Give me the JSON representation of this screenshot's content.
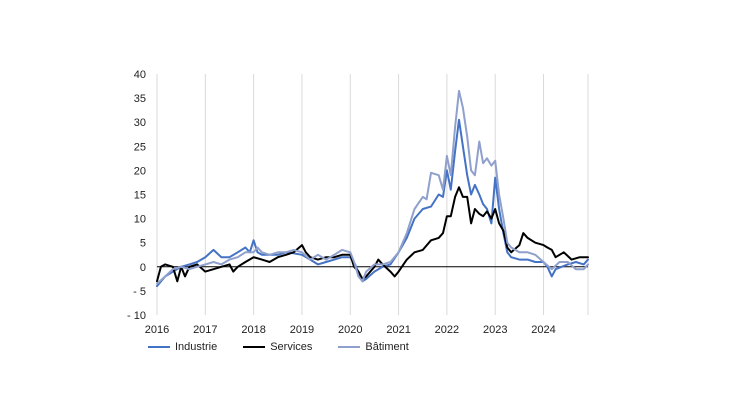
{
  "chart_data": {
    "type": "line",
    "title": "",
    "xlabel": "",
    "ylabel": "",
    "ylim": [
      -10,
      40
    ],
    "yticks": [
      -10,
      -5,
      0,
      5,
      10,
      15,
      20,
      25,
      30,
      35,
      40
    ],
    "ytick_labels": [
      "- 10",
      "- 5",
      "0",
      "5",
      "10",
      "15",
      "20",
      "25",
      "30",
      "35",
      "40"
    ],
    "xlim": [
      2016,
      2024.92
    ],
    "xticks": [
      2016,
      2017,
      2018,
      2019,
      2020,
      2021,
      2022,
      2023,
      2024
    ],
    "xtick_labels": [
      "2016",
      "2017",
      "2018",
      "2019",
      "2020",
      "2021",
      "2022",
      "2023",
      "2024"
    ],
    "grid": "vertical",
    "legend_position": "bottom-left",
    "zero_line": true,
    "series": [
      {
        "name": "Industrie",
        "color": "#4472c4",
        "points": [
          [
            2016.0,
            -4
          ],
          [
            2016.17,
            -2
          ],
          [
            2016.33,
            -1
          ],
          [
            2016.5,
            0
          ],
          [
            2016.67,
            0.5
          ],
          [
            2016.83,
            1
          ],
          [
            2017.0,
            2
          ],
          [
            2017.17,
            3.5
          ],
          [
            2017.33,
            2
          ],
          [
            2017.5,
            2
          ],
          [
            2017.67,
            3
          ],
          [
            2017.83,
            4
          ],
          [
            2017.92,
            3
          ],
          [
            2018.0,
            5.5
          ],
          [
            2018.08,
            3
          ],
          [
            2018.17,
            2.5
          ],
          [
            2018.33,
            2.5
          ],
          [
            2018.5,
            2.5
          ],
          [
            2018.67,
            3
          ],
          [
            2018.83,
            2.8
          ],
          [
            2019.0,
            2.5
          ],
          [
            2019.17,
            1.5
          ],
          [
            2019.33,
            0.5
          ],
          [
            2019.5,
            1
          ],
          [
            2019.67,
            1.5
          ],
          [
            2019.83,
            2
          ],
          [
            2020.0,
            2
          ],
          [
            2020.1,
            0.5
          ],
          [
            2020.25,
            -3
          ],
          [
            2020.33,
            -2.5
          ],
          [
            2020.5,
            -1
          ],
          [
            2020.67,
            0
          ],
          [
            2020.83,
            0.5
          ],
          [
            2021.0,
            3
          ],
          [
            2021.17,
            6
          ],
          [
            2021.33,
            10
          ],
          [
            2021.5,
            12
          ],
          [
            2021.67,
            12.5
          ],
          [
            2021.83,
            15
          ],
          [
            2021.92,
            14.5
          ],
          [
            2022.0,
            20
          ],
          [
            2022.08,
            16
          ],
          [
            2022.17,
            24
          ],
          [
            2022.25,
            30.5
          ],
          [
            2022.33,
            25
          ],
          [
            2022.42,
            19
          ],
          [
            2022.5,
            15
          ],
          [
            2022.58,
            17
          ],
          [
            2022.67,
            15
          ],
          [
            2022.75,
            13
          ],
          [
            2022.83,
            12
          ],
          [
            2022.92,
            9
          ],
          [
            2023.0,
            18.5
          ],
          [
            2023.08,
            12
          ],
          [
            2023.17,
            7
          ],
          [
            2023.25,
            3
          ],
          [
            2023.33,
            2
          ],
          [
            2023.5,
            1.5
          ],
          [
            2023.67,
            1.5
          ],
          [
            2023.83,
            1
          ],
          [
            2024.0,
            1
          ],
          [
            2024.08,
            0
          ],
          [
            2024.17,
            -2
          ],
          [
            2024.25,
            -0.5
          ],
          [
            2024.5,
            0.5
          ],
          [
            2024.67,
            1
          ],
          [
            2024.83,
            0.5
          ],
          [
            2024.92,
            1.5
          ]
        ]
      },
      {
        "name": "Services",
        "color": "#000000",
        "points": [
          [
            2016.0,
            -3
          ],
          [
            2016.08,
            0
          ],
          [
            2016.17,
            0.5
          ],
          [
            2016.33,
            0
          ],
          [
            2016.42,
            -3
          ],
          [
            2016.5,
            0
          ],
          [
            2016.58,
            -2
          ],
          [
            2016.67,
            0
          ],
          [
            2016.83,
            0.5
          ],
          [
            2017.0,
            -1
          ],
          [
            2017.17,
            -0.5
          ],
          [
            2017.33,
            0
          ],
          [
            2017.5,
            0.5
          ],
          [
            2017.58,
            -1
          ],
          [
            2017.67,
            0
          ],
          [
            2017.83,
            1
          ],
          [
            2018.0,
            2
          ],
          [
            2018.17,
            1.5
          ],
          [
            2018.33,
            1
          ],
          [
            2018.5,
            2
          ],
          [
            2018.67,
            2.5
          ],
          [
            2018.83,
            3
          ],
          [
            2019.0,
            4.5
          ],
          [
            2019.08,
            3
          ],
          [
            2019.17,
            2
          ],
          [
            2019.33,
            1.5
          ],
          [
            2019.5,
            2
          ],
          [
            2019.67,
            2
          ],
          [
            2019.83,
            2.5
          ],
          [
            2020.0,
            2.5
          ],
          [
            2020.08,
            0
          ],
          [
            2020.17,
            -1
          ],
          [
            2020.25,
            -2.5
          ],
          [
            2020.33,
            -2
          ],
          [
            2020.5,
            0
          ],
          [
            2020.58,
            1.5
          ],
          [
            2020.67,
            0.5
          ],
          [
            2020.83,
            -1
          ],
          [
            2020.92,
            -2
          ],
          [
            2021.0,
            -1
          ],
          [
            2021.17,
            1.5
          ],
          [
            2021.33,
            3
          ],
          [
            2021.5,
            3.5
          ],
          [
            2021.67,
            5.5
          ],
          [
            2021.83,
            6
          ],
          [
            2021.92,
            7
          ],
          [
            2022.0,
            10.5
          ],
          [
            2022.08,
            10.5
          ],
          [
            2022.17,
            14.5
          ],
          [
            2022.25,
            16.5
          ],
          [
            2022.33,
            14.5
          ],
          [
            2022.42,
            14.5
          ],
          [
            2022.5,
            9
          ],
          [
            2022.58,
            12
          ],
          [
            2022.67,
            11
          ],
          [
            2022.75,
            10.5
          ],
          [
            2022.83,
            11.5
          ],
          [
            2022.92,
            10
          ],
          [
            2023.0,
            12
          ],
          [
            2023.08,
            9
          ],
          [
            2023.17,
            7.5
          ],
          [
            2023.25,
            4
          ],
          [
            2023.33,
            3
          ],
          [
            2023.5,
            4.5
          ],
          [
            2023.58,
            7
          ],
          [
            2023.67,
            6
          ],
          [
            2023.83,
            5
          ],
          [
            2024.0,
            4.5
          ],
          [
            2024.08,
            4
          ],
          [
            2024.17,
            3.5
          ],
          [
            2024.25,
            2
          ],
          [
            2024.42,
            3
          ],
          [
            2024.58,
            1.5
          ],
          [
            2024.75,
            2
          ],
          [
            2024.92,
            2
          ]
        ]
      },
      {
        "name": "Bâtiment",
        "color": "#8fa0cc",
        "points": [
          [
            2016.0,
            -3.5
          ],
          [
            2016.17,
            -2
          ],
          [
            2016.33,
            -0.5
          ],
          [
            2016.5,
            0
          ],
          [
            2016.67,
            -0.5
          ],
          [
            2016.83,
            0
          ],
          [
            2017.0,
            0.5
          ],
          [
            2017.17,
            1
          ],
          [
            2017.33,
            0.5
          ],
          [
            2017.5,
            1.5
          ],
          [
            2017.67,
            2
          ],
          [
            2017.83,
            3
          ],
          [
            2018.0,
            3
          ],
          [
            2018.08,
            4
          ],
          [
            2018.17,
            3
          ],
          [
            2018.33,
            2.5
          ],
          [
            2018.5,
            3
          ],
          [
            2018.67,
            3
          ],
          [
            2018.83,
            3.5
          ],
          [
            2019.0,
            3
          ],
          [
            2019.17,
            1.5
          ],
          [
            2019.33,
            2.5
          ],
          [
            2019.5,
            1.5
          ],
          [
            2019.67,
            2.5
          ],
          [
            2019.83,
            3.5
          ],
          [
            2020.0,
            3
          ],
          [
            2020.08,
            1
          ],
          [
            2020.17,
            -2
          ],
          [
            2020.25,
            -3
          ],
          [
            2020.33,
            -1
          ],
          [
            2020.5,
            0.5
          ],
          [
            2020.67,
            0.5
          ],
          [
            2020.83,
            1
          ],
          [
            2021.0,
            3
          ],
          [
            2021.17,
            7
          ],
          [
            2021.33,
            12
          ],
          [
            2021.5,
            14.5
          ],
          [
            2021.58,
            14
          ],
          [
            2021.67,
            19.5
          ],
          [
            2021.83,
            19
          ],
          [
            2021.92,
            16
          ],
          [
            2022.0,
            23
          ],
          [
            2022.08,
            19
          ],
          [
            2022.17,
            29
          ],
          [
            2022.25,
            36.5
          ],
          [
            2022.33,
            33
          ],
          [
            2022.42,
            27
          ],
          [
            2022.5,
            20
          ],
          [
            2022.58,
            19
          ],
          [
            2022.67,
            26
          ],
          [
            2022.75,
            21.5
          ],
          [
            2022.83,
            22.5
          ],
          [
            2022.92,
            21
          ],
          [
            2023.0,
            22
          ],
          [
            2023.08,
            15
          ],
          [
            2023.17,
            10
          ],
          [
            2023.25,
            5
          ],
          [
            2023.33,
            4
          ],
          [
            2023.5,
            3
          ],
          [
            2023.67,
            3
          ],
          [
            2023.83,
            2.5
          ],
          [
            2024.0,
            1
          ],
          [
            2024.17,
            -0.5
          ],
          [
            2024.33,
            1
          ],
          [
            2024.5,
            1
          ],
          [
            2024.67,
            -0.5
          ],
          [
            2024.83,
            -0.5
          ],
          [
            2024.92,
            0.5
          ]
        ]
      }
    ]
  }
}
